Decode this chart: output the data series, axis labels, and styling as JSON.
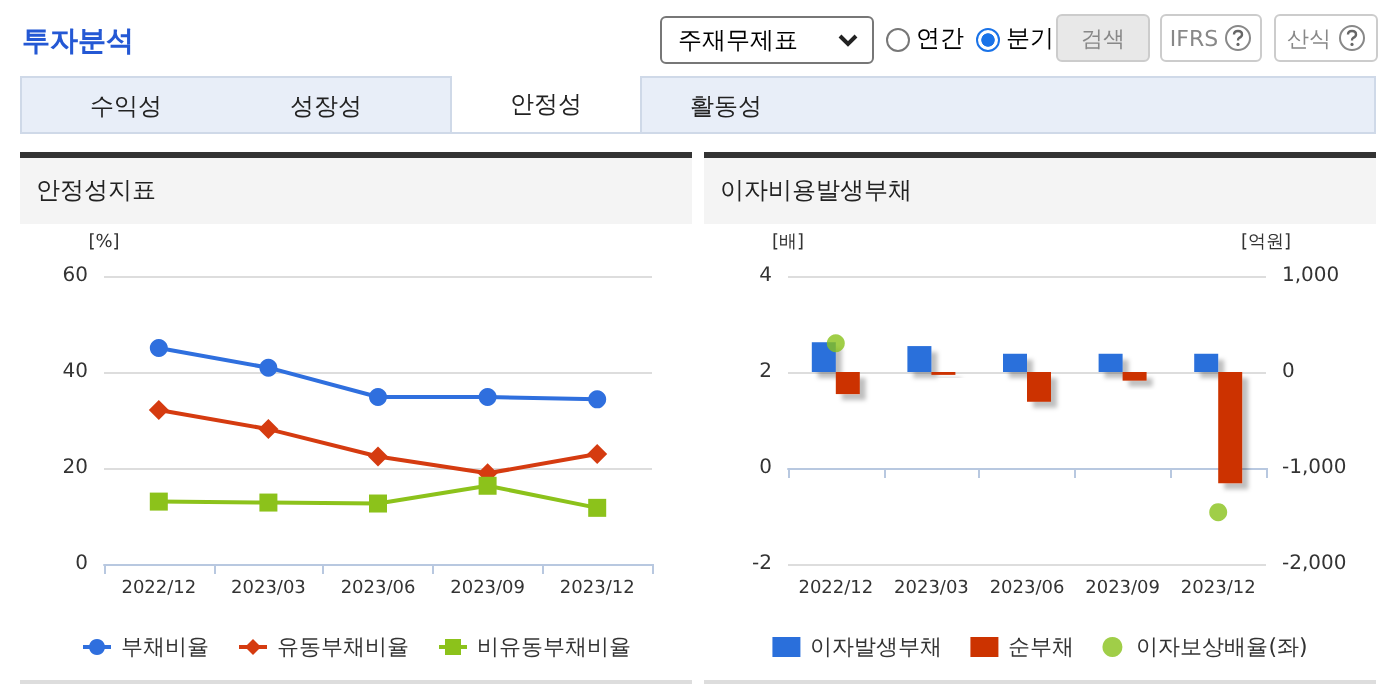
{
  "chart_data": [
    {
      "type": "other",
      "title": "투자분석",
      "annotations": [
        "주재무제표",
        "연간",
        "분기",
        "검색",
        "IFRS",
        "산식",
        "수익성",
        "성장성",
        "안정성",
        "활동성"
      ]
    },
    {
      "type": "line",
      "title": "안정성지표",
      "ylabel": "[%]",
      "categories": [
        "2022/12",
        "2023/03",
        "2023/06",
        "2023/09",
        "2023/12"
      ],
      "ylim": [
        0,
        60
      ],
      "yticks": [
        0,
        20,
        40,
        60
      ],
      "grid": "y",
      "legend": "bottom",
      "series": [
        {
          "name": "부채비율",
          "color": "#2f6fde",
          "marker": "circle",
          "values": [
            45.0,
            40.9,
            34.8,
            34.8,
            34.3
          ]
        },
        {
          "name": "유동부채비율",
          "color": "#d53b10",
          "marker": "diamond",
          "values": [
            32.1,
            28.1,
            22.4,
            18.9,
            22.9
          ]
        },
        {
          "name": "비유동부채비율",
          "color": "#8cc21b",
          "marker": "square",
          "values": [
            13.0,
            12.8,
            12.6,
            16.3,
            11.7
          ]
        }
      ]
    },
    {
      "type": "bar",
      "title": "이자비용발생부채",
      "ylabel": "[배]",
      "y2label": "[억원]",
      "categories": [
        "2022/12",
        "2023/03",
        "2023/06",
        "2023/09",
        "2023/12"
      ],
      "ylim": [
        -2,
        4
      ],
      "yticks": [
        -2,
        0,
        2,
        4
      ],
      "y2lim": [
        -2000,
        1000
      ],
      "y2ticks": [
        {
          "value": -2000,
          "label": "-2,000"
        },
        {
          "value": -1000,
          "label": "-1,000"
        },
        0,
        {
          "value": 1000,
          "label": "1,000"
        }
      ],
      "grid": "y",
      "legend": "bottom",
      "series": [
        {
          "name": "이자발생부채",
          "color": "#2a6fdb",
          "axis": "y2",
          "values": [
            310,
            270,
            190,
            190,
            190
          ]
        },
        {
          "name": "순부채",
          "color": "#cc3300",
          "axis": "y2",
          "values": [
            -230,
            -30,
            -310,
            -90,
            -1160
          ]
        },
        {
          "name": "이자보상배율(좌)",
          "type": "scatter",
          "color": "#88c21a",
          "marker": "circle",
          "values": [
            2.6,
            null,
            null,
            null,
            -0.92
          ]
        }
      ]
    }
  ]
}
